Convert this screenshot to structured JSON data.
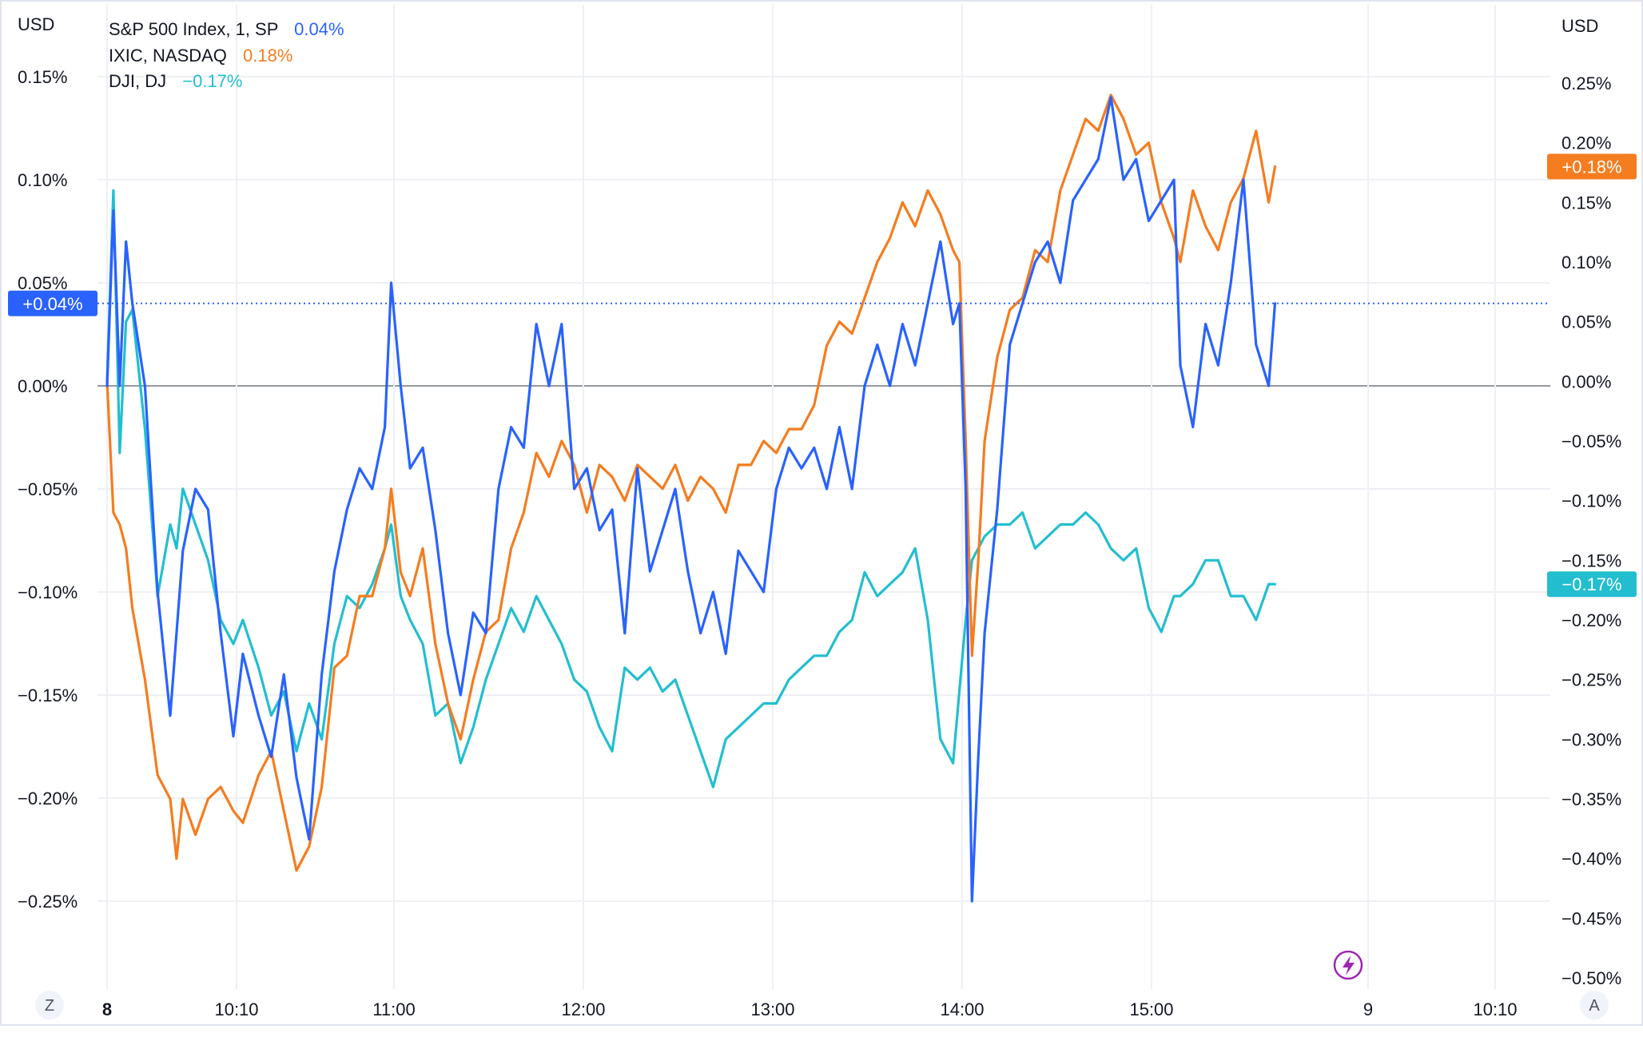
{
  "header": {
    "left_unit": "USD",
    "right_unit": "USD"
  },
  "legend": [
    {
      "name": "S&P 500 Index, 1, SP",
      "value": "0.04%",
      "color": "#2962ff"
    },
    {
      "name": "IXIC, NASDAQ",
      "value": "0.18%",
      "color": "#f57c1f"
    },
    {
      "name": "DJI, DJ",
      "value": "−0.17%",
      "color": "#22bed0"
    }
  ],
  "controls": {
    "timezone_button": "Z",
    "auto_scale_button": "A",
    "flash_icon": "lightning-icon"
  },
  "tags": {
    "left": {
      "text": "+0.04%",
      "color": "#2962ff"
    },
    "right_top": {
      "text": "+0.18%",
      "color": "#f57c1f"
    },
    "right_bottom": {
      "text": "−0.17%",
      "color": "#22bed0"
    }
  },
  "chart_data": {
    "type": "line",
    "x_tick_labels": [
      "8",
      "10:10",
      "11:00",
      "12:00",
      "13:00",
      "14:00",
      "15:00",
      "9",
      "10:10"
    ],
    "x_tick_bold": [
      "8"
    ],
    "left_axis": {
      "unit": "USD",
      "ylim": [
        -0.25,
        0.15
      ],
      "tick_values": [
        0.15,
        0.1,
        0.05,
        0.0,
        -0.05,
        -0.1,
        -0.15,
        -0.2,
        -0.25
      ],
      "tick_labels": [
        "0.15%",
        "0.10%",
        "0.05%",
        "0.00%",
        "−0.05%",
        "−0.10%",
        "−0.15%",
        "−0.20%",
        "−0.25%"
      ]
    },
    "right_axis": {
      "unit": "USD",
      "ylim": [
        -0.5,
        0.25
      ],
      "tick_values": [
        0.25,
        0.2,
        0.15,
        0.1,
        0.05,
        0.0,
        -0.05,
        -0.1,
        -0.15,
        -0.2,
        -0.25,
        -0.3,
        -0.35,
        -0.4,
        -0.45,
        -0.5
      ],
      "tick_labels": [
        "0.25%",
        "0.20%",
        "0.15%",
        "0.10%",
        "0.05%",
        "0.00%",
        "−0.05%",
        "−0.10%",
        "−0.15%",
        "−0.20%",
        "−0.25%",
        "−0.30%",
        "−0.35%",
        "−0.40%",
        "−0.45%",
        "−0.50%"
      ]
    },
    "grid": true,
    "legend_position": "top-left",
    "series": [
      {
        "name": "S&P 500 Index, 1, SP",
        "axis": "left",
        "color": "#2962ff",
        "last_value": 0.04,
        "x": [
          "09:30",
          "09:32",
          "09:34",
          "09:36",
          "09:38",
          "09:42",
          "09:46",
          "09:50",
          "09:52",
          "09:54",
          "09:58",
          "10:02",
          "10:06",
          "10:10",
          "10:13",
          "10:18",
          "10:22",
          "10:26",
          "10:30",
          "10:34",
          "10:38",
          "10:42",
          "10:46",
          "10:50",
          "10:54",
          "10:58",
          "11:00",
          "11:03",
          "11:06",
          "11:10",
          "11:14",
          "11:18",
          "11:22",
          "11:26",
          "11:30",
          "11:34",
          "11:38",
          "11:42",
          "11:46",
          "11:50",
          "11:54",
          "11:58",
          "12:02",
          "12:06",
          "12:10",
          "12:14",
          "12:18",
          "12:22",
          "12:26",
          "12:30",
          "12:34",
          "12:38",
          "12:42",
          "12:46",
          "12:50",
          "12:54",
          "12:58",
          "13:02",
          "13:06",
          "13:10",
          "13:14",
          "13:18",
          "13:22",
          "13:26",
          "13:30",
          "13:34",
          "13:38",
          "13:42",
          "13:46",
          "13:50",
          "13:54",
          "13:58",
          "14:00",
          "14:02",
          "14:04",
          "14:06",
          "14:08",
          "14:12",
          "14:16",
          "14:20",
          "14:24",
          "14:28",
          "14:32",
          "14:36",
          "14:40",
          "14:44",
          "14:48",
          "14:52",
          "14:56",
          "15:00",
          "15:04",
          "15:08",
          "15:10",
          "15:14",
          "15:18",
          "15:22",
          "15:26",
          "15:30",
          "15:34",
          "15:38",
          "15:40"
        ],
        "y": [
          0.0,
          0.085,
          0.0,
          0.07,
          0.04,
          0.0,
          -0.1,
          -0.16,
          -0.12,
          -0.08,
          -0.05,
          -0.06,
          -0.12,
          -0.17,
          -0.13,
          -0.16,
          -0.18,
          -0.14,
          -0.19,
          -0.22,
          -0.14,
          -0.09,
          -0.06,
          -0.04,
          -0.05,
          -0.02,
          0.05,
          0.0,
          -0.04,
          -0.03,
          -0.07,
          -0.12,
          -0.15,
          -0.11,
          -0.12,
          -0.05,
          -0.02,
          -0.03,
          0.03,
          0.0,
          0.03,
          -0.05,
          -0.04,
          -0.07,
          -0.06,
          -0.12,
          -0.04,
          -0.09,
          -0.07,
          -0.05,
          -0.09,
          -0.12,
          -0.1,
          -0.13,
          -0.08,
          -0.09,
          -0.1,
          -0.05,
          -0.03,
          -0.04,
          -0.03,
          -0.05,
          -0.02,
          -0.05,
          0.0,
          0.02,
          0.0,
          0.03,
          0.01,
          0.04,
          0.07,
          0.03,
          0.04,
          -0.05,
          -0.25,
          -0.18,
          -0.12,
          -0.06,
          0.02,
          0.04,
          0.06,
          0.07,
          0.05,
          0.09,
          0.1,
          0.11,
          0.14,
          0.1,
          0.11,
          0.08,
          0.09,
          0.1,
          0.01,
          -0.02,
          0.03,
          0.01,
          0.05,
          0.1,
          0.02,
          0.0,
          0.04
        ]
      },
      {
        "name": "IXIC, NASDAQ",
        "axis": "right",
        "color": "#f57c1f",
        "last_value": 0.18,
        "x": [
          "09:30",
          "09:32",
          "09:34",
          "09:36",
          "09:38",
          "09:42",
          "09:46",
          "09:50",
          "09:52",
          "09:54",
          "09:58",
          "10:02",
          "10:06",
          "10:10",
          "10:13",
          "10:18",
          "10:22",
          "10:26",
          "10:30",
          "10:34",
          "10:38",
          "10:42",
          "10:46",
          "10:50",
          "10:54",
          "10:58",
          "11:00",
          "11:03",
          "11:06",
          "11:10",
          "11:14",
          "11:18",
          "11:22",
          "11:26",
          "11:30",
          "11:34",
          "11:38",
          "11:42",
          "11:46",
          "11:50",
          "11:54",
          "11:58",
          "12:02",
          "12:06",
          "12:10",
          "12:14",
          "12:18",
          "12:22",
          "12:26",
          "12:30",
          "12:34",
          "12:38",
          "12:42",
          "12:46",
          "12:50",
          "12:54",
          "12:58",
          "13:02",
          "13:06",
          "13:10",
          "13:14",
          "13:18",
          "13:22",
          "13:26",
          "13:30",
          "13:34",
          "13:38",
          "13:42",
          "13:46",
          "13:50",
          "13:54",
          "13:58",
          "14:00",
          "14:02",
          "14:04",
          "14:06",
          "14:08",
          "14:12",
          "14:16",
          "14:20",
          "14:24",
          "14:28",
          "14:32",
          "14:36",
          "14:40",
          "14:44",
          "14:48",
          "14:52",
          "14:56",
          "15:00",
          "15:04",
          "15:08",
          "15:10",
          "15:14",
          "15:18",
          "15:22",
          "15:26",
          "15:30",
          "15:34",
          "15:38",
          "15:40"
        ],
        "y": [
          0.0,
          -0.11,
          -0.12,
          -0.14,
          -0.19,
          -0.25,
          -0.33,
          -0.35,
          -0.4,
          -0.35,
          -0.38,
          -0.35,
          -0.34,
          -0.36,
          -0.37,
          -0.33,
          -0.31,
          -0.36,
          -0.41,
          -0.39,
          -0.34,
          -0.24,
          -0.23,
          -0.18,
          -0.18,
          -0.14,
          -0.09,
          -0.16,
          -0.18,
          -0.14,
          -0.22,
          -0.27,
          -0.3,
          -0.25,
          -0.21,
          -0.2,
          -0.14,
          -0.11,
          -0.06,
          -0.08,
          -0.05,
          -0.07,
          -0.11,
          -0.07,
          -0.08,
          -0.1,
          -0.07,
          -0.08,
          -0.09,
          -0.07,
          -0.1,
          -0.08,
          -0.09,
          -0.11,
          -0.07,
          -0.07,
          -0.05,
          -0.06,
          -0.04,
          -0.04,
          -0.02,
          0.03,
          0.05,
          0.04,
          0.07,
          0.1,
          0.12,
          0.15,
          0.13,
          0.16,
          0.14,
          0.11,
          0.1,
          -0.05,
          -0.23,
          -0.15,
          -0.05,
          0.02,
          0.06,
          0.07,
          0.11,
          0.1,
          0.16,
          0.19,
          0.22,
          0.21,
          0.24,
          0.22,
          0.19,
          0.2,
          0.15,
          0.12,
          0.1,
          0.16,
          0.13,
          0.11,
          0.15,
          0.17,
          0.21,
          0.15,
          0.18
        ]
      },
      {
        "name": "DJI, DJ",
        "axis": "right",
        "color": "#22bed0",
        "last_value": -0.17,
        "x": [
          "09:30",
          "09:32",
          "09:34",
          "09:36",
          "09:38",
          "09:42",
          "09:46",
          "09:50",
          "09:52",
          "09:54",
          "09:58",
          "10:02",
          "10:06",
          "10:10",
          "10:13",
          "10:18",
          "10:22",
          "10:26",
          "10:30",
          "10:34",
          "10:38",
          "10:42",
          "10:46",
          "10:50",
          "10:54",
          "10:58",
          "11:00",
          "11:03",
          "11:06",
          "11:10",
          "11:14",
          "11:18",
          "11:22",
          "11:26",
          "11:30",
          "11:34",
          "11:38",
          "11:42",
          "11:46",
          "11:50",
          "11:54",
          "11:58",
          "12:02",
          "12:06",
          "12:10",
          "12:14",
          "12:18",
          "12:22",
          "12:26",
          "12:30",
          "12:34",
          "12:38",
          "12:42",
          "12:46",
          "12:50",
          "12:54",
          "12:58",
          "13:02",
          "13:06",
          "13:10",
          "13:14",
          "13:18",
          "13:22",
          "13:26",
          "13:30",
          "13:34",
          "13:38",
          "13:42",
          "13:46",
          "13:50",
          "13:54",
          "13:58",
          "14:00",
          "14:02",
          "14:04",
          "14:06",
          "14:08",
          "14:12",
          "14:16",
          "14:20",
          "14:24",
          "14:28",
          "14:32",
          "14:36",
          "14:40",
          "14:44",
          "14:48",
          "14:52",
          "14:56",
          "15:00",
          "15:04",
          "15:08",
          "15:10",
          "15:14",
          "15:18",
          "15:22",
          "15:26",
          "15:30",
          "15:34",
          "15:38",
          "15:40"
        ],
        "y": [
          0.0,
          0.16,
          -0.06,
          0.05,
          0.06,
          -0.04,
          -0.18,
          -0.12,
          -0.14,
          -0.09,
          -0.12,
          -0.15,
          -0.2,
          -0.22,
          -0.2,
          -0.24,
          -0.28,
          -0.26,
          -0.31,
          -0.27,
          -0.3,
          -0.22,
          -0.18,
          -0.19,
          -0.17,
          -0.14,
          -0.12,
          -0.18,
          -0.2,
          -0.22,
          -0.28,
          -0.27,
          -0.32,
          -0.29,
          -0.25,
          -0.22,
          -0.19,
          -0.21,
          -0.18,
          -0.2,
          -0.22,
          -0.25,
          -0.26,
          -0.29,
          -0.31,
          -0.24,
          -0.25,
          -0.24,
          -0.26,
          -0.25,
          -0.28,
          -0.31,
          -0.34,
          -0.3,
          -0.29,
          -0.28,
          -0.27,
          -0.27,
          -0.25,
          -0.24,
          -0.23,
          -0.23,
          -0.21,
          -0.2,
          -0.16,
          -0.18,
          -0.17,
          -0.16,
          -0.14,
          -0.2,
          -0.3,
          -0.32,
          -0.26,
          -0.2,
          -0.15,
          -0.14,
          -0.13,
          -0.12,
          -0.12,
          -0.11,
          -0.14,
          -0.13,
          -0.12,
          -0.12,
          -0.11,
          -0.12,
          -0.14,
          -0.15,
          -0.14,
          -0.19,
          -0.21,
          -0.18,
          -0.18,
          -0.17,
          -0.15,
          -0.15,
          -0.18,
          -0.18,
          -0.2,
          -0.17,
          -0.17
        ]
      }
    ]
  }
}
